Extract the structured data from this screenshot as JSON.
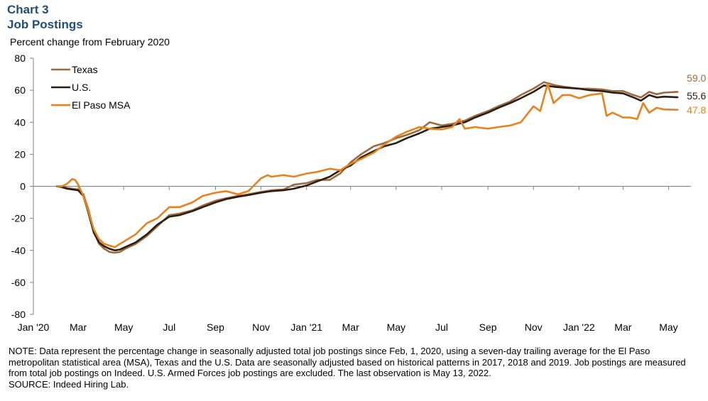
{
  "header": {
    "chart_number": "Chart 3",
    "chart_title": "Job Postings",
    "subtitle": "Percent change from February 2020"
  },
  "notes": {
    "note": "NOTE: Data represent the percentage change in seasonally adjusted total job postings since Feb, 1, 2020, using a seven-day trailing average for the El Paso metropolitan statistical area (MSA), Texas and the U.S. Data are seasonally adjusted based on historical patterns in 2017, 2018 and 2019. Job postings are measured from total job postings on Indeed. U.S. Armed Forces job postings are excluded. The last observation is May 13, 2022.",
    "source": "SOURCE: Indeed Hiring Lab."
  },
  "chart_data": {
    "type": "line",
    "ylabel": "Percent change from February 2020",
    "ylim": [
      -80,
      80
    ],
    "yticks": [
      80,
      60,
      40,
      20,
      0,
      -20,
      -40,
      -60,
      -80
    ],
    "xlim": [
      "2020-01-01",
      "2022-05-31"
    ],
    "xticks": [
      {
        "date": "2020-01-01",
        "label": "Jan '20"
      },
      {
        "date": "2020-03-01",
        "label": "Mar"
      },
      {
        "date": "2020-05-01",
        "label": "May"
      },
      {
        "date": "2020-07-01",
        "label": "Jul"
      },
      {
        "date": "2020-09-01",
        "label": "Sep"
      },
      {
        "date": "2020-11-01",
        "label": "Nov"
      },
      {
        "date": "2021-01-01",
        "label": "Jan '21"
      },
      {
        "date": "2021-03-01",
        "label": "Mar"
      },
      {
        "date": "2021-05-01",
        "label": "May"
      },
      {
        "date": "2021-07-01",
        "label": "Jul"
      },
      {
        "date": "2021-09-01",
        "label": "Sep"
      },
      {
        "date": "2021-11-01",
        "label": "Nov"
      },
      {
        "date": "2022-01-01",
        "label": "Jan '22"
      },
      {
        "date": "2022-03-01",
        "label": "Mar"
      },
      {
        "date": "2022-05-01",
        "label": "May"
      }
    ],
    "grid": false,
    "legend_position": "top-left",
    "series": [
      {
        "name": "Texas",
        "color": "#9c6a3f",
        "end_label": "59.0",
        "points": [
          [
            "2020-02-01",
            0
          ],
          [
            "2020-02-08",
            0
          ],
          [
            "2020-02-15",
            -1
          ],
          [
            "2020-02-22",
            -1.5
          ],
          [
            "2020-03-01",
            -2
          ],
          [
            "2020-03-08",
            -5
          ],
          [
            "2020-03-15",
            -15
          ],
          [
            "2020-03-22",
            -28
          ],
          [
            "2020-03-29",
            -36
          ],
          [
            "2020-04-05",
            -39
          ],
          [
            "2020-04-12",
            -41
          ],
          [
            "2020-04-19",
            -41.5
          ],
          [
            "2020-04-26",
            -41
          ],
          [
            "2020-05-03",
            -39
          ],
          [
            "2020-05-17",
            -36
          ],
          [
            "2020-06-01",
            -31
          ],
          [
            "2020-06-15",
            -25
          ],
          [
            "2020-07-01",
            -18
          ],
          [
            "2020-07-15",
            -17
          ],
          [
            "2020-08-01",
            -15
          ],
          [
            "2020-08-15",
            -12
          ],
          [
            "2020-09-01",
            -9
          ],
          [
            "2020-09-15",
            -7.5
          ],
          [
            "2020-10-01",
            -6
          ],
          [
            "2020-10-15",
            -5
          ],
          [
            "2020-11-01",
            -3.5
          ],
          [
            "2020-11-15",
            -2.5
          ],
          [
            "2020-12-01",
            -2
          ],
          [
            "2020-12-15",
            1
          ],
          [
            "2021-01-01",
            2
          ],
          [
            "2021-01-15",
            4
          ],
          [
            "2021-02-01",
            4
          ],
          [
            "2021-02-15",
            8
          ],
          [
            "2021-03-01",
            15
          ],
          [
            "2021-03-15",
            20
          ],
          [
            "2021-04-01",
            25
          ],
          [
            "2021-04-15",
            27
          ],
          [
            "2021-05-01",
            30
          ],
          [
            "2021-05-15",
            32
          ],
          [
            "2021-06-01",
            35
          ],
          [
            "2021-06-15",
            40
          ],
          [
            "2021-07-01",
            38
          ],
          [
            "2021-07-15",
            39
          ],
          [
            "2021-08-01",
            41
          ],
          [
            "2021-08-15",
            44
          ],
          [
            "2021-09-01",
            47
          ],
          [
            "2021-09-15",
            50
          ],
          [
            "2021-10-01",
            53
          ],
          [
            "2021-10-15",
            57
          ],
          [
            "2021-11-01",
            61
          ],
          [
            "2021-11-15",
            65
          ],
          [
            "2021-12-01",
            63
          ],
          [
            "2021-12-15",
            62
          ],
          [
            "2022-01-01",
            61
          ],
          [
            "2022-01-15",
            61
          ],
          [
            "2022-02-01",
            60.5
          ],
          [
            "2022-02-15",
            59.5
          ],
          [
            "2022-03-01",
            59.5
          ],
          [
            "2022-03-15",
            57
          ],
          [
            "2022-03-25",
            55.5
          ],
          [
            "2022-04-05",
            59
          ],
          [
            "2022-04-15",
            57.5
          ],
          [
            "2022-04-25",
            58.5
          ],
          [
            "2022-05-13",
            59
          ]
        ]
      },
      {
        "name": "U.S.",
        "color": "#2b1d12",
        "end_label": "55.6",
        "points": [
          [
            "2020-02-01",
            0
          ],
          [
            "2020-02-08",
            -0.5
          ],
          [
            "2020-02-15",
            -1.5
          ],
          [
            "2020-02-22",
            -2
          ],
          [
            "2020-03-01",
            -2.5
          ],
          [
            "2020-03-08",
            -6
          ],
          [
            "2020-03-15",
            -17
          ],
          [
            "2020-03-22",
            -29
          ],
          [
            "2020-03-29",
            -35
          ],
          [
            "2020-04-05",
            -37.5
          ],
          [
            "2020-04-12",
            -39
          ],
          [
            "2020-04-19",
            -40
          ],
          [
            "2020-04-26",
            -39.5
          ],
          [
            "2020-05-03",
            -38
          ],
          [
            "2020-05-17",
            -35
          ],
          [
            "2020-06-01",
            -30
          ],
          [
            "2020-06-15",
            -24
          ],
          [
            "2020-07-01",
            -19
          ],
          [
            "2020-07-15",
            -18
          ],
          [
            "2020-08-01",
            -15.5
          ],
          [
            "2020-08-15",
            -13
          ],
          [
            "2020-09-01",
            -10
          ],
          [
            "2020-09-15",
            -8
          ],
          [
            "2020-10-01",
            -6.5
          ],
          [
            "2020-10-15",
            -5.5
          ],
          [
            "2020-11-01",
            -4
          ],
          [
            "2020-11-15",
            -3
          ],
          [
            "2020-12-01",
            -2.5
          ],
          [
            "2020-12-15",
            -1.5
          ],
          [
            "2021-01-01",
            0.5
          ],
          [
            "2021-01-15",
            3
          ],
          [
            "2021-02-01",
            6
          ],
          [
            "2021-02-15",
            10
          ],
          [
            "2021-03-01",
            13
          ],
          [
            "2021-03-15",
            18
          ],
          [
            "2021-04-01",
            22
          ],
          [
            "2021-04-15",
            25
          ],
          [
            "2021-05-01",
            27
          ],
          [
            "2021-05-15",
            30
          ],
          [
            "2021-06-01",
            33
          ],
          [
            "2021-06-15",
            36
          ],
          [
            "2021-07-01",
            37
          ],
          [
            "2021-07-15",
            38
          ],
          [
            "2021-08-01",
            40
          ],
          [
            "2021-08-15",
            43
          ],
          [
            "2021-09-01",
            46
          ],
          [
            "2021-09-15",
            49
          ],
          [
            "2021-10-01",
            52
          ],
          [
            "2021-10-15",
            55
          ],
          [
            "2021-11-01",
            59
          ],
          [
            "2021-11-15",
            63
          ],
          [
            "2021-12-01",
            62
          ],
          [
            "2021-12-15",
            61.5
          ],
          [
            "2022-01-01",
            61
          ],
          [
            "2022-01-15",
            60
          ],
          [
            "2022-02-01",
            59.5
          ],
          [
            "2022-02-15",
            58.5
          ],
          [
            "2022-03-01",
            58
          ],
          [
            "2022-03-15",
            55.5
          ],
          [
            "2022-03-25",
            53.5
          ],
          [
            "2022-04-05",
            57
          ],
          [
            "2022-04-15",
            55.5
          ],
          [
            "2022-04-25",
            56
          ],
          [
            "2022-05-13",
            55.6
          ]
        ]
      },
      {
        "name": "El Paso MSA",
        "color": "#e8821c",
        "end_label": "47.8",
        "points": [
          [
            "2020-02-01",
            0
          ],
          [
            "2020-02-08",
            0
          ],
          [
            "2020-02-15",
            1.5
          ],
          [
            "2020-02-22",
            4.5
          ],
          [
            "2020-02-26",
            4
          ],
          [
            "2020-03-01",
            1
          ],
          [
            "2020-03-08",
            -6
          ],
          [
            "2020-03-15",
            -16
          ],
          [
            "2020-03-22",
            -27
          ],
          [
            "2020-03-29",
            -33
          ],
          [
            "2020-04-05",
            -36
          ],
          [
            "2020-04-12",
            -37
          ],
          [
            "2020-04-19",
            -38
          ],
          [
            "2020-04-26",
            -36
          ],
          [
            "2020-05-03",
            -34
          ],
          [
            "2020-05-17",
            -30
          ],
          [
            "2020-06-01",
            -23
          ],
          [
            "2020-06-15",
            -20
          ],
          [
            "2020-07-01",
            -13
          ],
          [
            "2020-07-15",
            -13
          ],
          [
            "2020-08-01",
            -10
          ],
          [
            "2020-08-15",
            -6
          ],
          [
            "2020-09-01",
            -4
          ],
          [
            "2020-09-15",
            -3
          ],
          [
            "2020-10-01",
            -5
          ],
          [
            "2020-10-15",
            -3
          ],
          [
            "2020-11-01",
            5
          ],
          [
            "2020-11-10",
            7
          ],
          [
            "2020-11-15",
            6
          ],
          [
            "2020-12-01",
            7
          ],
          [
            "2020-12-15",
            6
          ],
          [
            "2021-01-01",
            8
          ],
          [
            "2021-01-15",
            9
          ],
          [
            "2021-02-01",
            11
          ],
          [
            "2021-02-15",
            10
          ],
          [
            "2021-03-01",
            14
          ],
          [
            "2021-03-15",
            17
          ],
          [
            "2021-04-01",
            21
          ],
          [
            "2021-04-15",
            26
          ],
          [
            "2021-05-01",
            31
          ],
          [
            "2021-05-15",
            34
          ],
          [
            "2021-06-01",
            37
          ],
          [
            "2021-06-15",
            36
          ],
          [
            "2021-07-01",
            35.5
          ],
          [
            "2021-07-15",
            37
          ],
          [
            "2021-07-25",
            42
          ],
          [
            "2021-08-01",
            36
          ],
          [
            "2021-08-15",
            37
          ],
          [
            "2021-09-01",
            36
          ],
          [
            "2021-09-15",
            37
          ],
          [
            "2021-10-01",
            38
          ],
          [
            "2021-10-15",
            40
          ],
          [
            "2021-11-01",
            50
          ],
          [
            "2021-11-10",
            47
          ],
          [
            "2021-11-20",
            64
          ],
          [
            "2021-11-28",
            52
          ],
          [
            "2021-12-10",
            57
          ],
          [
            "2021-12-20",
            57
          ],
          [
            "2022-01-01",
            55
          ],
          [
            "2022-01-15",
            57
          ],
          [
            "2022-02-01",
            58
          ],
          [
            "2022-02-07",
            44
          ],
          [
            "2022-02-15",
            46
          ],
          [
            "2022-03-01",
            43
          ],
          [
            "2022-03-10",
            43
          ],
          [
            "2022-03-20",
            42
          ],
          [
            "2022-03-28",
            52
          ],
          [
            "2022-04-05",
            46
          ],
          [
            "2022-04-15",
            49
          ],
          [
            "2022-04-25",
            48
          ],
          [
            "2022-05-13",
            47.8
          ]
        ]
      }
    ]
  }
}
